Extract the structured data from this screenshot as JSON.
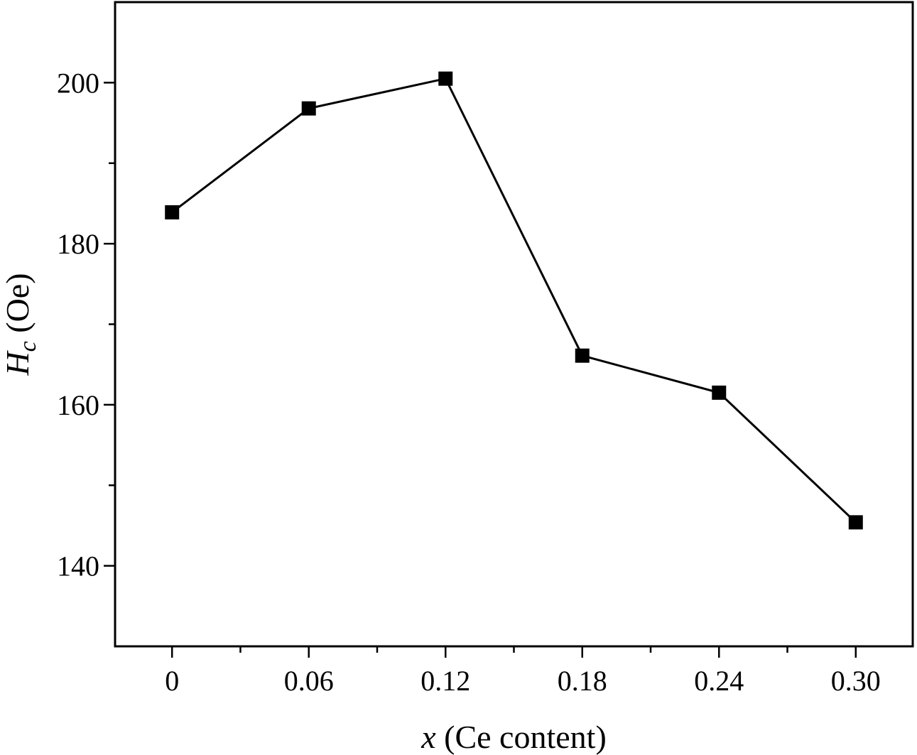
{
  "chart_data": {
    "type": "line",
    "x": [
      0,
      0.06,
      0.12,
      0.18,
      0.24,
      0.3
    ],
    "series": [
      {
        "values": [
          183.9,
          196.8,
          200.5,
          166.1,
          161.5,
          145.4
        ],
        "marker": "square",
        "color": "#000000"
      }
    ],
    "xticks": [
      {
        "value": 0,
        "label": "0"
      },
      {
        "value": 0.06,
        "label": "0.06"
      },
      {
        "value": 0.12,
        "label": "0.12"
      },
      {
        "value": 0.18,
        "label": "0.18"
      },
      {
        "value": 0.24,
        "label": "0.24"
      },
      {
        "value": 0.3,
        "label": "0.30"
      }
    ],
    "xminor": [
      0.03,
      0.09,
      0.15,
      0.21,
      0.27
    ],
    "yticks": [
      {
        "value": 140,
        "label": "140"
      },
      {
        "value": 160,
        "label": "160"
      },
      {
        "value": 180,
        "label": "180"
      },
      {
        "value": 200,
        "label": "200"
      }
    ],
    "yminor": [
      150,
      170,
      190
    ],
    "xlim": [
      -0.025,
      0.325
    ],
    "ylim": [
      130,
      210
    ],
    "xlabel": {
      "var": "x",
      "rest": " (Ce content)"
    },
    "ylabel": {
      "var": "H",
      "sub": "c",
      "rest": " (Oe)"
    },
    "grid": false,
    "legend": "none"
  }
}
